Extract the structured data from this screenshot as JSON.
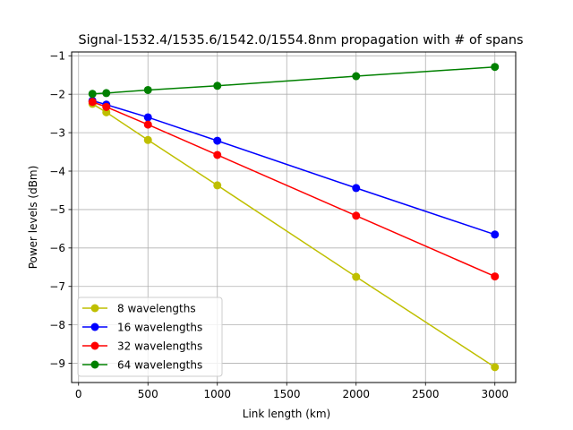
{
  "chart_data": {
    "type": "line",
    "title": "Signal-1532.4/1535.6/1542.0/1554.8nm propagation with # of spans",
    "xlabel": "Link length (km)",
    "ylabel": "Power levels (dBm)",
    "xlim": [
      -50,
      3150
    ],
    "ylim": [
      -9.5,
      -0.9
    ],
    "x_ticks": [
      0,
      500,
      1000,
      1500,
      2000,
      2500,
      3000
    ],
    "x_tick_labels": [
      "0",
      "500",
      "1000",
      "1500",
      "2000",
      "2500",
      "3000"
    ],
    "y_ticks": [
      -9,
      -8,
      -7,
      -6,
      -5,
      -4,
      -3,
      -2,
      -1
    ],
    "y_tick_labels": [
      "−9",
      "−8",
      "−7",
      "−6",
      "−5",
      "−4",
      "−3",
      "−2",
      "−1"
    ],
    "grid": true,
    "legend_position": "lower-left",
    "x": [
      100,
      200,
      500,
      1000,
      2000,
      3000
    ],
    "series": [
      {
        "name": "8 wavelengths",
        "color": "#bfbf00",
        "values": [
          -2.25,
          -2.47,
          -3.19,
          -4.37,
          -6.75,
          -9.1
        ]
      },
      {
        "name": "16 wavelengths",
        "color": "#0000ff",
        "values": [
          -2.17,
          -2.27,
          -2.6,
          -3.21,
          -4.44,
          -5.65
        ]
      },
      {
        "name": "32 wavelengths",
        "color": "#ff0000",
        "values": [
          -2.2,
          -2.33,
          -2.79,
          -3.58,
          -5.16,
          -6.74
        ]
      },
      {
        "name": "64 wavelengths",
        "color": "#008000",
        "values": [
          -1.99,
          -1.97,
          -1.89,
          -1.78,
          -1.53,
          -1.29
        ]
      }
    ]
  }
}
